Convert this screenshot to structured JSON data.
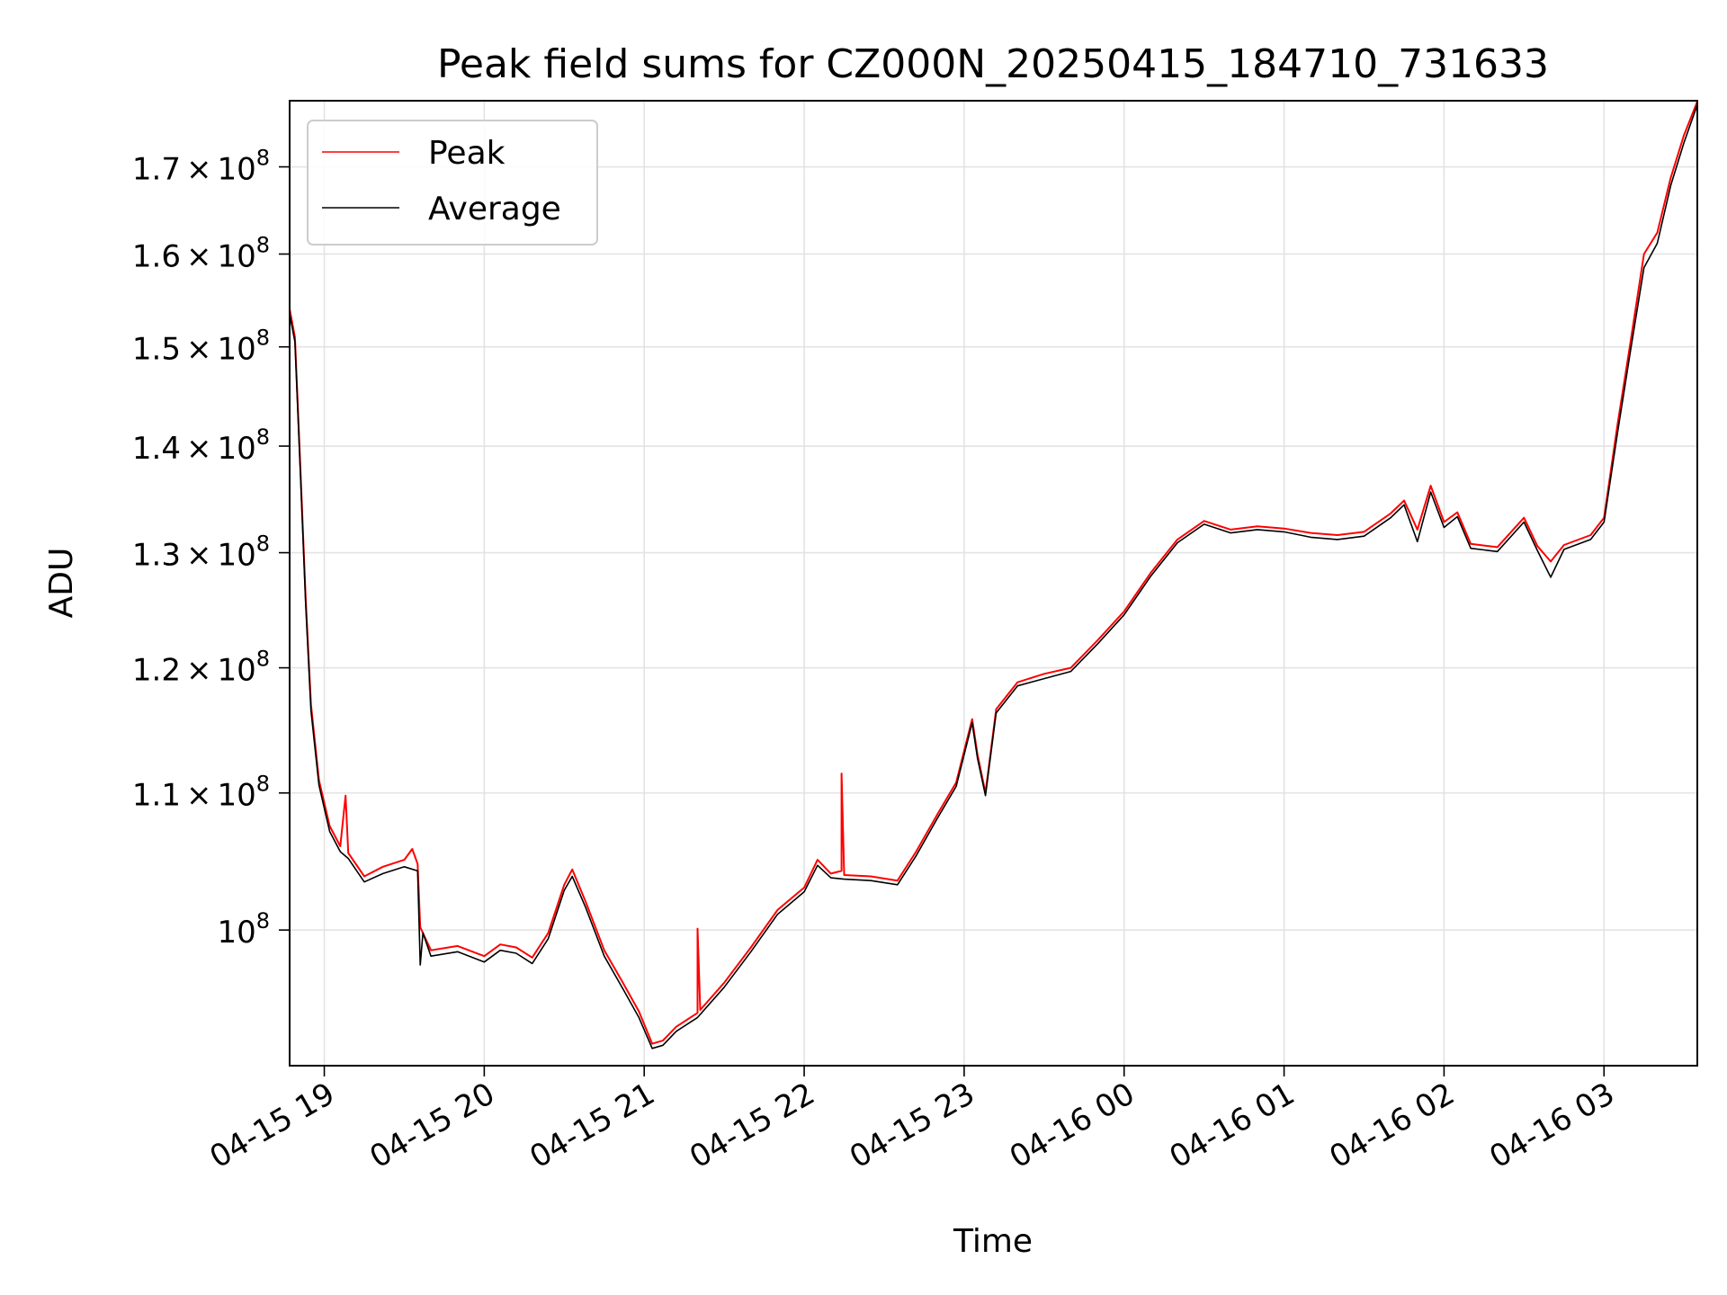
{
  "chart_data": {
    "type": "line",
    "title": "Peak field sums for CZ000N_20250415_184710_731633",
    "xlabel": "Time",
    "ylabel": "ADU",
    "yscale": "log",
    "ylim": [
      91000000,
      178000000
    ],
    "xlim": [
      "2025-04-15 18:47",
      "2025-04-16 03:35"
    ],
    "grid": true,
    "legend_position": "top-left",
    "x_ticks": [
      {
        "x": "2025-04-15 19:00",
        "label": "04-15 19"
      },
      {
        "x": "2025-04-15 20:00",
        "label": "04-15 20"
      },
      {
        "x": "2025-04-15 21:00",
        "label": "04-15 21"
      },
      {
        "x": "2025-04-15 22:00",
        "label": "04-15 22"
      },
      {
        "x": "2025-04-15 23:00",
        "label": "04-15 23"
      },
      {
        "x": "2025-04-16 00:00",
        "label": "04-16 00"
      },
      {
        "x": "2025-04-16 01:00",
        "label": "04-16 01"
      },
      {
        "x": "2025-04-16 02:00",
        "label": "04-16 02"
      },
      {
        "x": "2025-04-16 03:00",
        "label": "04-16 03"
      }
    ],
    "y_ticks": [
      {
        "value": 100000000,
        "mantissa": "",
        "exponent": "8"
      },
      {
        "value": 110000000,
        "mantissa": "1.1",
        "exponent": "8"
      },
      {
        "value": 120000000,
        "mantissa": "1.2",
        "exponent": "8"
      },
      {
        "value": 130000000,
        "mantissa": "1.3",
        "exponent": "8"
      },
      {
        "value": 140000000,
        "mantissa": "1.4",
        "exponent": "8"
      },
      {
        "value": 150000000,
        "mantissa": "1.5",
        "exponent": "8"
      },
      {
        "value": 160000000,
        "mantissa": "1.6",
        "exponent": "8"
      },
      {
        "value": 170000000,
        "mantissa": "1.7",
        "exponent": "8"
      }
    ],
    "series": [
      {
        "name": "Peak",
        "color": "#ff0000",
        "points": [
          [
            "2025-04-15 18:47",
            154000000
          ],
          [
            "2025-04-15 18:49",
            151000000
          ],
          [
            "2025-04-15 18:51",
            138000000
          ],
          [
            "2025-04-15 18:53",
            126000000
          ],
          [
            "2025-04-15 18:55",
            117000000
          ],
          [
            "2025-04-15 18:58",
            111000000
          ],
          [
            "2025-04-15 19:02",
            107500000
          ],
          [
            "2025-04-15 19:06",
            106000000
          ],
          [
            "2025-04-15 19:08",
            109800000
          ],
          [
            "2025-04-15 19:09",
            105500000
          ],
          [
            "2025-04-15 19:15",
            103800000
          ],
          [
            "2025-04-15 19:22",
            104500000
          ],
          [
            "2025-04-15 19:30",
            105000000
          ],
          [
            "2025-04-15 19:33",
            105800000
          ],
          [
            "2025-04-15 19:35",
            104700000
          ],
          [
            "2025-04-15 19:36",
            100200000
          ],
          [
            "2025-04-15 19:40",
            98600000
          ],
          [
            "2025-04-15 19:50",
            98900000
          ],
          [
            "2025-04-15 20:00",
            98200000
          ],
          [
            "2025-04-15 20:06",
            99000000
          ],
          [
            "2025-04-15 20:12",
            98800000
          ],
          [
            "2025-04-15 20:18",
            98100000
          ],
          [
            "2025-04-15 20:24",
            99800000
          ],
          [
            "2025-04-15 20:30",
            103200000
          ],
          [
            "2025-04-15 20:33",
            104300000
          ],
          [
            "2025-04-15 20:38",
            102000000
          ],
          [
            "2025-04-15 20:45",
            98600000
          ],
          [
            "2025-04-15 20:52",
            96400000
          ],
          [
            "2025-04-15 20:58",
            94500000
          ],
          [
            "2025-04-15 21:03",
            92400000
          ],
          [
            "2025-04-15 21:07",
            92600000
          ],
          [
            "2025-04-15 21:12",
            93500000
          ],
          [
            "2025-04-15 21:20",
            94400000
          ],
          [
            "2025-04-15 21:20",
            100100000
          ],
          [
            "2025-04-15 21:21",
            94600000
          ],
          [
            "2025-04-15 21:30",
            96400000
          ],
          [
            "2025-04-15 21:40",
            98800000
          ],
          [
            "2025-04-15 21:50",
            101400000
          ],
          [
            "2025-04-15 22:00",
            103000000
          ],
          [
            "2025-04-15 22:05",
            105000000
          ],
          [
            "2025-04-15 22:10",
            104000000
          ],
          [
            "2025-04-15 22:14",
            104200000
          ],
          [
            "2025-04-15 22:14",
            111500000
          ],
          [
            "2025-04-15 22:15",
            103900000
          ],
          [
            "2025-04-15 22:25",
            103800000
          ],
          [
            "2025-04-15 22:35",
            103500000
          ],
          [
            "2025-04-15 22:42",
            105600000
          ],
          [
            "2025-04-15 22:50",
            108400000
          ],
          [
            "2025-04-15 22:57",
            110800000
          ],
          [
            "2025-04-15 23:03",
            115800000
          ],
          [
            "2025-04-15 23:05",
            113000000
          ],
          [
            "2025-04-15 23:08",
            110000000
          ],
          [
            "2025-04-15 23:12",
            116600000
          ],
          [
            "2025-04-15 23:20",
            118800000
          ],
          [
            "2025-04-15 23:30",
            119500000
          ],
          [
            "2025-04-15 23:40",
            120000000
          ],
          [
            "2025-04-15 23:50",
            122300000
          ],
          [
            "2025-04-16 00:00",
            124800000
          ],
          [
            "2025-04-16 00:10",
            128200000
          ],
          [
            "2025-04-16 00:20",
            131200000
          ],
          [
            "2025-04-16 00:30",
            132900000
          ],
          [
            "2025-04-16 00:40",
            132100000
          ],
          [
            "2025-04-16 00:50",
            132400000
          ],
          [
            "2025-04-16 01:00",
            132200000
          ],
          [
            "2025-04-16 01:10",
            131800000
          ],
          [
            "2025-04-16 01:20",
            131600000
          ],
          [
            "2025-04-16 01:30",
            131900000
          ],
          [
            "2025-04-16 01:40",
            133600000
          ],
          [
            "2025-04-16 01:45",
            134800000
          ],
          [
            "2025-04-16 01:50",
            132100000
          ],
          [
            "2025-04-16 01:55",
            136200000
          ],
          [
            "2025-04-16 02:00",
            132800000
          ],
          [
            "2025-04-16 02:05",
            133700000
          ],
          [
            "2025-04-16 02:10",
            130800000
          ],
          [
            "2025-04-16 02:20",
            130500000
          ],
          [
            "2025-04-16 02:30",
            133200000
          ],
          [
            "2025-04-16 02:35",
            130600000
          ],
          [
            "2025-04-16 02:40",
            129200000
          ],
          [
            "2025-04-16 02:45",
            130700000
          ],
          [
            "2025-04-16 02:55",
            131600000
          ],
          [
            "2025-04-16 03:00",
            133200000
          ],
          [
            "2025-04-16 03:05",
            142000000
          ],
          [
            "2025-04-16 03:10",
            150600000
          ],
          [
            "2025-04-16 03:15",
            160000000
          ],
          [
            "2025-04-16 03:20",
            162400000
          ],
          [
            "2025-04-16 03:25",
            168700000
          ],
          [
            "2025-04-16 03:30",
            173800000
          ],
          [
            "2025-04-16 03:35",
            177900000
          ]
        ]
      },
      {
        "name": "Average",
        "color": "#000000",
        "points": [
          [
            "2025-04-15 18:47",
            153500000
          ],
          [
            "2025-04-15 18:49",
            150500000
          ],
          [
            "2025-04-15 18:51",
            137500000
          ],
          [
            "2025-04-15 18:53",
            125500000
          ],
          [
            "2025-04-15 18:55",
            116500000
          ],
          [
            "2025-04-15 18:58",
            110600000
          ],
          [
            "2025-04-15 19:02",
            107100000
          ],
          [
            "2025-04-15 19:06",
            105600000
          ],
          [
            "2025-04-15 19:09",
            105100000
          ],
          [
            "2025-04-15 19:15",
            103400000
          ],
          [
            "2025-04-15 19:22",
            104000000
          ],
          [
            "2025-04-15 19:30",
            104500000
          ],
          [
            "2025-04-15 19:35",
            104200000
          ],
          [
            "2025-04-15 19:36",
            97600000
          ],
          [
            "2025-04-15 19:37",
            99800000
          ],
          [
            "2025-04-15 19:40",
            98200000
          ],
          [
            "2025-04-15 19:50",
            98500000
          ],
          [
            "2025-04-15 20:00",
            97800000
          ],
          [
            "2025-04-15 20:06",
            98600000
          ],
          [
            "2025-04-15 20:12",
            98400000
          ],
          [
            "2025-04-15 20:18",
            97700000
          ],
          [
            "2025-04-15 20:24",
            99400000
          ],
          [
            "2025-04-15 20:30",
            102800000
          ],
          [
            "2025-04-15 20:33",
            103800000
          ],
          [
            "2025-04-15 20:38",
            101600000
          ],
          [
            "2025-04-15 20:45",
            98200000
          ],
          [
            "2025-04-15 20:52",
            96000000
          ],
          [
            "2025-04-15 20:58",
            94100000
          ],
          [
            "2025-04-15 21:03",
            92100000
          ],
          [
            "2025-04-15 21:07",
            92300000
          ],
          [
            "2025-04-15 21:12",
            93200000
          ],
          [
            "2025-04-15 21:20",
            94100000
          ],
          [
            "2025-04-15 21:30",
            96100000
          ],
          [
            "2025-04-15 21:40",
            98500000
          ],
          [
            "2025-04-15 21:50",
            101100000
          ],
          [
            "2025-04-15 22:00",
            102700000
          ],
          [
            "2025-04-15 22:05",
            104600000
          ],
          [
            "2025-04-15 22:10",
            103700000
          ],
          [
            "2025-04-15 22:15",
            103600000
          ],
          [
            "2025-04-15 22:25",
            103500000
          ],
          [
            "2025-04-15 22:35",
            103200000
          ],
          [
            "2025-04-15 22:42",
            105300000
          ],
          [
            "2025-04-15 22:50",
            108100000
          ],
          [
            "2025-04-15 22:57",
            110500000
          ],
          [
            "2025-04-15 23:03",
            115500000
          ],
          [
            "2025-04-15 23:05",
            112700000
          ],
          [
            "2025-04-15 23:08",
            109800000
          ],
          [
            "2025-04-15 23:12",
            116300000
          ],
          [
            "2025-04-15 23:20",
            118500000
          ],
          [
            "2025-04-15 23:30",
            119100000
          ],
          [
            "2025-04-15 23:40",
            119700000
          ],
          [
            "2025-04-15 23:50",
            122000000
          ],
          [
            "2025-04-16 00:00",
            124500000
          ],
          [
            "2025-04-16 00:10",
            127900000
          ],
          [
            "2025-04-16 00:20",
            130900000
          ],
          [
            "2025-04-16 00:30",
            132600000
          ],
          [
            "2025-04-16 00:40",
            131800000
          ],
          [
            "2025-04-16 00:50",
            132100000
          ],
          [
            "2025-04-16 01:00",
            131900000
          ],
          [
            "2025-04-16 01:10",
            131400000
          ],
          [
            "2025-04-16 01:20",
            131200000
          ],
          [
            "2025-04-16 01:30",
            131500000
          ],
          [
            "2025-04-16 01:40",
            133200000
          ],
          [
            "2025-04-16 01:45",
            134400000
          ],
          [
            "2025-04-16 01:50",
            131000000
          ],
          [
            "2025-04-16 01:55",
            135600000
          ],
          [
            "2025-04-16 02:00",
            132300000
          ],
          [
            "2025-04-16 02:05",
            133300000
          ],
          [
            "2025-04-16 02:10",
            130400000
          ],
          [
            "2025-04-16 02:20",
            130100000
          ],
          [
            "2025-04-16 02:30",
            132800000
          ],
          [
            "2025-04-16 02:35",
            130200000
          ],
          [
            "2025-04-16 02:40",
            127800000
          ],
          [
            "2025-04-16 02:45",
            130300000
          ],
          [
            "2025-04-16 02:55",
            131200000
          ],
          [
            "2025-04-16 03:00",
            132800000
          ],
          [
            "2025-04-16 03:05",
            141200000
          ],
          [
            "2025-04-16 03:10",
            149700000
          ],
          [
            "2025-04-16 03:15",
            158500000
          ],
          [
            "2025-04-16 03:20",
            161200000
          ],
          [
            "2025-04-16 03:25",
            167800000
          ],
          [
            "2025-04-16 03:30",
            172900000
          ],
          [
            "2025-04-16 03:35",
            177500000
          ]
        ]
      }
    ]
  }
}
